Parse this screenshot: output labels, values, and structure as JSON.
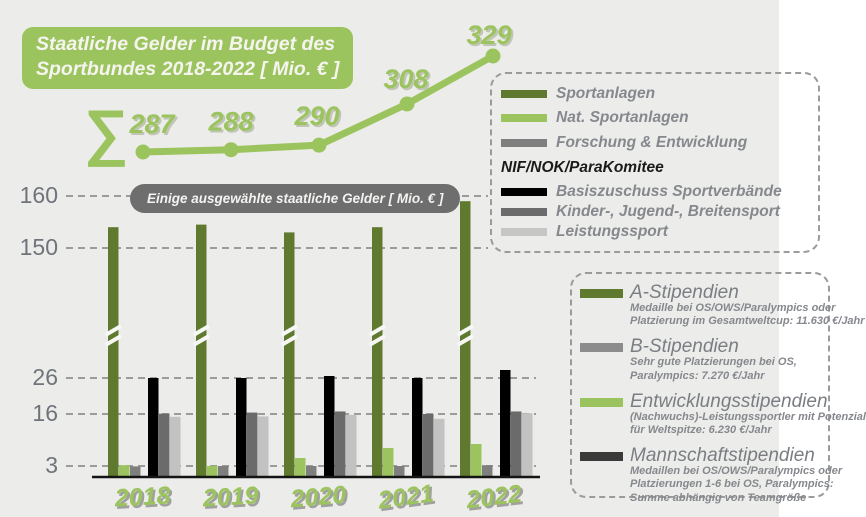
{
  "app": {
    "background": "#ECECEA"
  },
  "title_box": {
    "line1": "Staatliche Gelder im Budget des",
    "line2": "Sportbundes 2018-2022 [ Mio. € ]",
    "bg": "#9CC45E"
  },
  "sum_symbol": "∑",
  "badge": {
    "label": "Einige ausgewählte staatliche Gelder [ Mio. € ]",
    "bg": "#6E6E6E"
  },
  "legend_top": {
    "items_general": [
      {
        "label": "Sportanlagen",
        "color": "#5F7A2E"
      },
      {
        "label": "Nat. Sportanlagen",
        "color": "#9CC45E"
      },
      {
        "label": "Forschung & Entwicklung",
        "color": "#7F7F7F"
      }
    ],
    "group_header": "NIF/NOK/ParaKomitee",
    "items_nif": [
      {
        "label": "Basiszuschuss Sportverbände",
        "color": "#000000"
      },
      {
        "label": "Kinder-, Jugend-, Breitensport",
        "color": "#6B6B6B"
      },
      {
        "label": "Leistungssport",
        "color": "#C6C6C6"
      }
    ]
  },
  "legend_bottom": {
    "items": [
      {
        "title": "A-Stipendien",
        "color": "#5F7A2E",
        "desc": [
          "Medaille bei OS/OWS/Paralympics oder",
          "Platzierung im Gesamtweltcup: 11.630 €/Jahr"
        ]
      },
      {
        "title": "B-Stipendien",
        "color": "#8C8C8C",
        "desc": [
          "Sehr gute Platzierungen bei OS,",
          "Paralympics: 7.270 €/Jahr"
        ]
      },
      {
        "title": "Entwicklungsstipendien",
        "color": "#9CC45E",
        "desc": [
          "(Nachwuchs)-Leistungssportler mit Potenzial",
          "für Weltspitze: 6.230 €/Jahr"
        ]
      },
      {
        "title": "Mannschaftstipendien",
        "color": "#3A3A3A",
        "desc": [
          "Medaillen bei OS/OWS/Paralympics oder",
          "Platzierungen 1-6 bei OS, Paralympics:",
          "Summe abhängig von Teamgröße"
        ]
      }
    ]
  },
  "chart_data": [
    {
      "type": "line",
      "title": "Staatliche Gelder im Budget des Sportbundes 2018-2022 [ Mio. € ]",
      "x": [
        "2018",
        "2019",
        "2020",
        "2021",
        "2022"
      ],
      "values": [
        287,
        288,
        290,
        308,
        329
      ],
      "color": "#9CC45E",
      "legend_position": "none",
      "grid": false
    },
    {
      "type": "bar",
      "title": "Einige ausgewählte staatliche Gelder [ Mio. € ]",
      "categories": [
        "2018",
        "2019",
        "2020",
        "2021",
        "2022"
      ],
      "y_ticks": [
        3,
        16,
        26,
        150,
        160
      ],
      "axis_break_between": [
        30,
        150
      ],
      "grid": true,
      "legend_position": "right",
      "series": [
        {
          "name": "Sportanlagen",
          "color": "#5F7A2E",
          "values": [
            154,
            154.5,
            153,
            154,
            159
          ]
        },
        {
          "name": "Nat. Sportanlagen",
          "color": "#9CC45E",
          "values": [
            3.2,
            3,
            5,
            7.5,
            8.5
          ]
        },
        {
          "name": "Forschung & Entwicklung",
          "color": "#7F7F7F",
          "values": [
            2.9,
            3,
            3,
            3,
            3.2
          ]
        },
        {
          "name": "Basiszuschuss Sportverbände",
          "color": "#000000",
          "values": [
            26,
            26,
            26.5,
            26,
            28
          ]
        },
        {
          "name": "Kinder-, Jugend-, Breitensport",
          "color": "#6B6B6B",
          "values": [
            16.1,
            16.4,
            16.7,
            16,
            16.7
          ]
        },
        {
          "name": "Leistungssport",
          "color": "#C2C2C2",
          "values": [
            15.3,
            15.4,
            15.8,
            14.8,
            16.2
          ]
        }
      ]
    }
  ]
}
